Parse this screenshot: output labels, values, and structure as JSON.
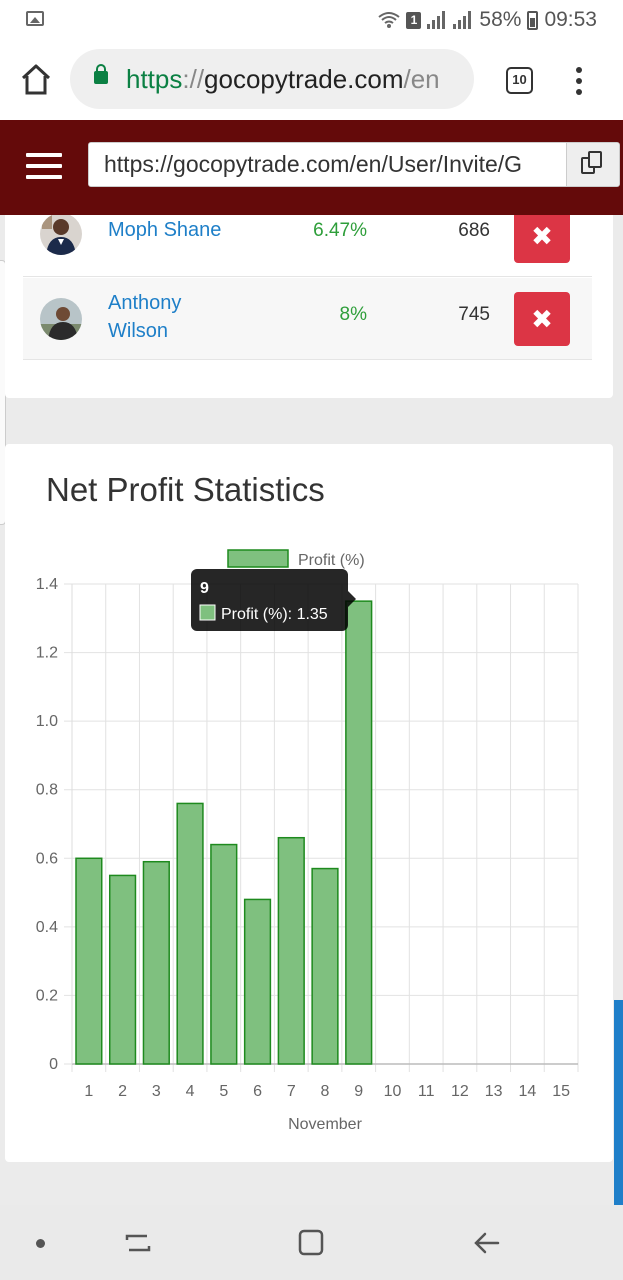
{
  "status_bar": {
    "battery": "58%",
    "time": "09:53",
    "sim_slot": "1"
  },
  "browser": {
    "url": {
      "scheme": "https",
      "separator": "://",
      "host": "gocopytrade.com",
      "path": "/en"
    },
    "tab_count": "10"
  },
  "site": {
    "invite_url": "https://gocopytrade.com/en/User/Invite/G"
  },
  "followers": [
    {
      "name": "Moph Shane",
      "percent": "6.47%",
      "count": "686",
      "delete_label": "✖"
    },
    {
      "name": "Anthony Wilson",
      "percent": "8%",
      "count": "745",
      "delete_label": "✖"
    }
  ],
  "chart_section": {
    "title": "Net Profit Statistics"
  },
  "chart_data": {
    "type": "bar",
    "categories": [
      "1",
      "2",
      "3",
      "4",
      "5",
      "6",
      "7",
      "8",
      "9",
      "10",
      "11",
      "12",
      "13",
      "14",
      "15"
    ],
    "series": [
      {
        "name": "Profit (%)",
        "values": [
          0.6,
          0.55,
          0.59,
          0.76,
          0.64,
          0.48,
          0.66,
          0.57,
          1.35,
          null,
          null,
          null,
          null,
          null,
          null
        ]
      }
    ],
    "ylim": [
      0,
      1.4
    ],
    "yticks": [
      "0",
      "0.2",
      "0.4",
      "0.6",
      "0.8",
      "1.0",
      "1.2",
      "1.4"
    ],
    "xlabel": "November",
    "ylabel": "",
    "legend": "top",
    "grid": true,
    "colors": {
      "bar_fill": "#7fc07f",
      "bar_stroke": "#1e8a1e"
    },
    "tooltip": {
      "title": "9",
      "label": "Profit (%): 1.35"
    }
  }
}
